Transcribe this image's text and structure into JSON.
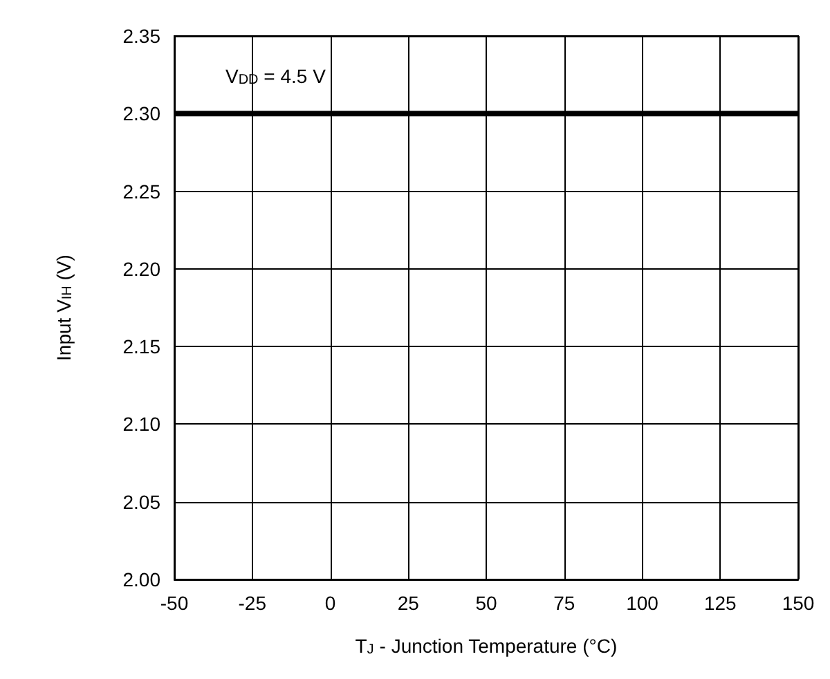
{
  "chart_data": {
    "type": "line",
    "xlabel": "T$_{J}$ - Junction Temperature (°C)",
    "ylabel": "Input V$_{IH}$ (V)",
    "annotations": [
      "V$_{DD}$ = 4.5 V"
    ],
    "x": [
      -50,
      150
    ],
    "series": [
      {
        "color": "#000000",
        "values": [
          2.3,
          2.3
        ]
      }
    ],
    "xlim": [
      -50,
      150
    ],
    "xticks": [
      -50,
      -25,
      0,
      25,
      50,
      75,
      100,
      125,
      150
    ],
    "ylim": [
      2.0,
      2.35
    ],
    "yticks": [
      {
        "value": 2.0,
        "label": "2.00"
      },
      2.05,
      {
        "value": 2.1,
        "label": "2.10"
      },
      2.15,
      {
        "value": 2.2,
        "label": "2.20"
      },
      2.25,
      {
        "value": 2.3,
        "label": "2.30"
      },
      2.35
    ],
    "grid": true,
    "marker": "none",
    "line_style": "solid"
  }
}
